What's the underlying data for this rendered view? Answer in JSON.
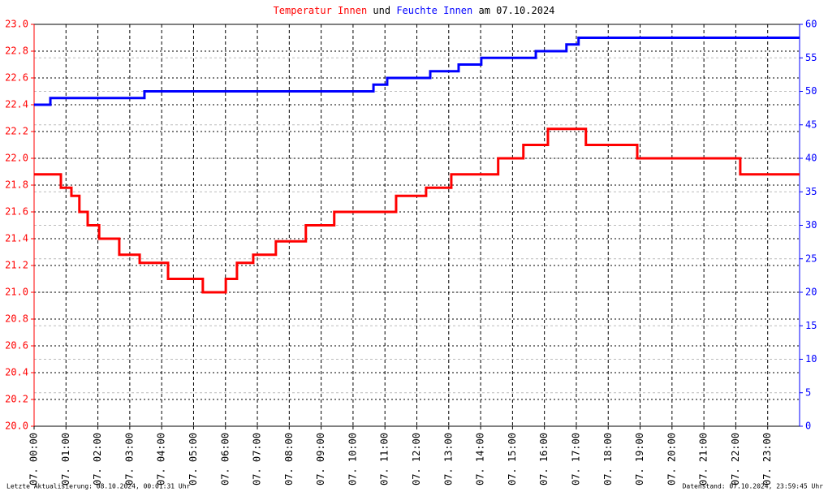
{
  "chart_data": {
    "type": "line",
    "title": [
      {
        "text": "Temperatur Innen",
        "color": "#ff0000"
      },
      {
        "text": "und",
        "color": "#000000"
      },
      {
        "text": "Feuchte Innen",
        "color": "#0000ff"
      },
      {
        "text": "am 07.10.2024",
        "color": "#000000"
      }
    ],
    "footer_left": "Letzte Aktualisierung: 08.10.2024, 00:01:31 Uhr",
    "footer_right": "Datenstand: 07.10.2024, 23:59:45 Uhr",
    "xlim": [
      0,
      24
    ],
    "xticks": [
      {
        "value": 0,
        "label": "07. 00:00"
      },
      {
        "value": 1,
        "label": "07. 01:00"
      },
      {
        "value": 2,
        "label": "07. 02:00"
      },
      {
        "value": 3,
        "label": "07. 03:00"
      },
      {
        "value": 4,
        "label": "07. 04:00"
      },
      {
        "value": 5,
        "label": "07. 05:00"
      },
      {
        "value": 6,
        "label": "07. 06:00"
      },
      {
        "value": 7,
        "label": "07. 07:00"
      },
      {
        "value": 8,
        "label": "07. 08:00"
      },
      {
        "value": 9,
        "label": "07. 09:00"
      },
      {
        "value": 10,
        "label": "07. 10:00"
      },
      {
        "value": 11,
        "label": "07. 11:00"
      },
      {
        "value": 12,
        "label": "07. 12:00"
      },
      {
        "value": 13,
        "label": "07. 13:00"
      },
      {
        "value": 14,
        "label": "07. 14:00"
      },
      {
        "value": 15,
        "label": "07. 15:00"
      },
      {
        "value": 16,
        "label": "07. 16:00"
      },
      {
        "value": 17,
        "label": "07. 17:00"
      },
      {
        "value": 18,
        "label": "07. 18:00"
      },
      {
        "value": 19,
        "label": "07. 19:00"
      },
      {
        "value": 20,
        "label": "07. 20:00"
      },
      {
        "value": 21,
        "label": "07. 21:00"
      },
      {
        "value": 22,
        "label": "07. 22:00"
      },
      {
        "value": 23,
        "label": "07. 23:00"
      }
    ],
    "ylim": [
      20,
      23
    ],
    "yticks": [
      {
        "value": 20,
        "label": "20.0"
      },
      20.2,
      20.4,
      20.6,
      20.8,
      {
        "value": 21,
        "label": "21.0"
      },
      21.2,
      21.4,
      21.6,
      21.8,
      {
        "value": 22,
        "label": "22.0"
      },
      22.2,
      22.4,
      22.6,
      22.8,
      {
        "value": 23,
        "label": "23.0"
      }
    ],
    "y2lim": [
      0,
      60
    ],
    "y2ticks": [
      0,
      5,
      10,
      15,
      20,
      25,
      30,
      35,
      40,
      45,
      50,
      55,
      60
    ],
    "grid": true,
    "series": [
      {
        "name": "Temperatur Innen",
        "color": "#ff0000",
        "axis": "y",
        "x": [
          0,
          0.84,
          0.84,
          1.17,
          1.17,
          1.42,
          1.42,
          1.68,
          1.68,
          2.04,
          2.04,
          2.67,
          2.67,
          3.31,
          3.31,
          4.2,
          4.2,
          5.29,
          5.29,
          6.01,
          6.01,
          6.36,
          6.36,
          6.87,
          6.87,
          7.58,
          7.58,
          8.52,
          8.52,
          9.41,
          9.41,
          11.35,
          11.35,
          12.29,
          12.29,
          13.08,
          13.08,
          14.55,
          14.55,
          15.34,
          15.34,
          16.11,
          16.11,
          17.3,
          17.3,
          18.91,
          18.91,
          22.14,
          22.14,
          24
        ],
        "values": [
          21.88,
          21.88,
          21.78,
          21.78,
          21.72,
          21.72,
          21.6,
          21.6,
          21.5,
          21.5,
          21.4,
          21.4,
          21.28,
          21.28,
          21.22,
          21.22,
          21.1,
          21.1,
          21.0,
          21.0,
          21.1,
          21.1,
          21.22,
          21.22,
          21.28,
          21.28,
          21.38,
          21.38,
          21.5,
          21.5,
          21.6,
          21.6,
          21.72,
          21.72,
          21.78,
          21.78,
          21.88,
          21.88,
          22.0,
          22.0,
          22.1,
          22.1,
          22.22,
          22.22,
          22.1,
          22.1,
          22.0,
          22.0,
          21.88,
          21.88
        ]
      },
      {
        "name": "Feuchte Innen",
        "color": "#0000ff",
        "axis": "y2",
        "x": [
          0,
          0.51,
          0.51,
          3.46,
          3.46,
          10.64,
          10.64,
          11.07,
          11.07,
          12.42,
          12.42,
          13.31,
          13.31,
          14.02,
          14.02,
          15.73,
          15.73,
          16.69,
          16.69,
          17.07,
          17.07,
          24
        ],
        "values": [
          48,
          48,
          49,
          49,
          50,
          50,
          51,
          51,
          52,
          52,
          53,
          53,
          54,
          54,
          55,
          55,
          56,
          56,
          57,
          57,
          58,
          58
        ]
      }
    ]
  }
}
